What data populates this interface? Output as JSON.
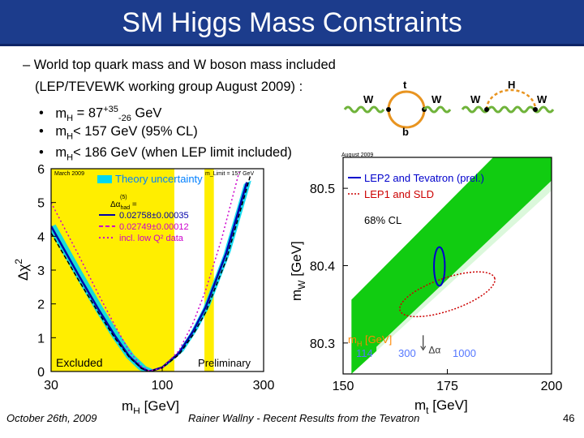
{
  "slide": {
    "title": "SM Higgs Mass Constraints",
    "line1": "– World top quark mass and W boson mass included",
    "line2": "(LEP/TEVEWK working group August 2009) :",
    "bullets": [
      {
        "mark": "•",
        "pre": "m",
        "sub": "H",
        "mid": " = 87",
        "sup2": "+35",
        "sub2": "-26",
        "post": " GeV"
      },
      {
        "mark": "•",
        "pre": "m",
        "sub": "H",
        "post": "< 157 GeV (95% CL)"
      },
      {
        "mark": "•",
        "pre": "m",
        "sub": "H",
        "post": "< 186 GeV (when LEP limit included)"
      }
    ]
  },
  "feynman": {
    "loop_top": "t",
    "loop_bottom": "b",
    "higgs": "H",
    "w_labels": [
      "W",
      "W",
      "W",
      "W"
    ],
    "colors": {
      "w_line": "#6fb33a",
      "loop": "#e89420"
    }
  },
  "footer": {
    "date": "October 26th, 2009",
    "author": "Rainer Wallny - Recent Results from the Tevatron",
    "page": "46"
  },
  "chart_data": [
    {
      "type": "line",
      "title": "",
      "top_left_note": "March 2009",
      "limit_note": "m_Limit = 157 GeV",
      "xlabel": "m",
      "xlabel_sub": "H",
      "xlabel_unit": " [GeV]",
      "ylabel": "Δχ",
      "ylabel_sup": "2",
      "xlim": [
        30,
        300
      ],
      "ylim": [
        0,
        6
      ],
      "x_ticks": [
        30,
        100,
        300
      ],
      "y_ticks": [
        0,
        1,
        2,
        3,
        4,
        5,
        6
      ],
      "excluded_region": {
        "x": [
          30,
          114
        ],
        "label": "Excluded",
        "color": "#ffee00"
      },
      "preliminary_region": {
        "x": [
          158,
          175
        ],
        "label": "Preliminary",
        "color": "#ffee00"
      },
      "legend": {
        "theory_label": "Theory uncertainty",
        "alpha_label": "Δα",
        "alpha_sup": "(5)",
        "alpha_sub": "had",
        "alpha_eq": " =",
        "entries": [
          "0.02758±0.00035",
          "0.02749±0.00012",
          "incl. low Q² data"
        ]
      },
      "series": [
        {
          "values_x": [
            30,
            40,
            50,
            60,
            70,
            80,
            87,
            100,
            120,
            140,
            160,
            200,
            250
          ],
          "values_y": [
            4.3,
            2.9,
            1.85,
            1.05,
            0.45,
            0.1,
            0,
            0.12,
            0.55,
            1.2,
            1.9,
            3.5,
            5.6
          ]
        },
        {
          "values_x": [
            30,
            40,
            50,
            60,
            70,
            80,
            87,
            100,
            120,
            140,
            160,
            200,
            260
          ],
          "values_y": [
            4.1,
            2.75,
            1.75,
            0.98,
            0.42,
            0.09,
            0,
            0.11,
            0.5,
            1.1,
            1.75,
            3.3,
            5.8
          ]
        },
        {
          "values_x": [
            30,
            40,
            50,
            60,
            70,
            80,
            87,
            100,
            120,
            140,
            160,
            190,
            230
          ],
          "values_y": [
            5.0,
            3.5,
            2.3,
            1.35,
            0.6,
            0.15,
            0.02,
            0.1,
            0.62,
            1.45,
            2.4,
            3.9,
            5.9
          ]
        }
      ],
      "colors": {
        "band": "#00d8f0",
        "central": "#0000aa",
        "alt": "#000000",
        "lowq": "#cc00cc"
      }
    },
    {
      "type": "scatter",
      "top_left_note": "August 2009",
      "xlabel": "m",
      "xlabel_sub": "t",
      "xlabel_unit": " [GeV]",
      "ylabel": "m",
      "ylabel_sub": "W",
      "ylabel_unit": " [GeV]",
      "xlim": [
        150,
        200
      ],
      "ylim": [
        80.26,
        80.54
      ],
      "x_ticks": [
        150,
        175,
        200
      ],
      "y_ticks": [
        80.3,
        80.4,
        80.5
      ],
      "legend": [
        "LEP2 and Tevatron (prel.)",
        "LEP1 and SLD",
        "68% CL"
      ],
      "band_label": "m",
      "band_label_sub": "H",
      "band_label_unit": " [GeV]",
      "band_values": [
        "114",
        "300",
        "1000"
      ],
      "delta_alpha_label": "Δα",
      "lep2_tev_ellipse": {
        "center": [
          173.1,
          80.399
        ],
        "semi_axes": [
          1.3,
          0.025
        ],
        "color": "#0000cc"
      },
      "lep1_sld_ellipse": {
        "center": [
          175.0,
          80.363
        ],
        "semi_axes": [
          12.0,
          0.021
        ],
        "tilt_deg": -19,
        "color": "#cc0000"
      },
      "colors": {
        "band": "#11cc11",
        "band_stripe": "#ffffff"
      }
    }
  ]
}
